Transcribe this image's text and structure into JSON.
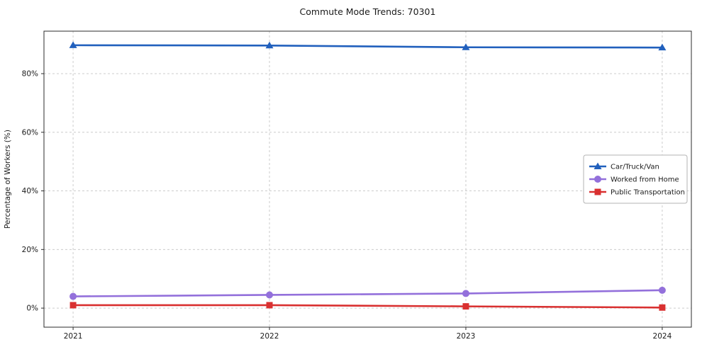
{
  "chart_data": {
    "type": "line",
    "title": "Commute Mode Trends: 70301",
    "xlabel": "",
    "ylabel": "Percentage of Workers (%)",
    "categories": [
      "2021",
      "2022",
      "2023",
      "2024"
    ],
    "series": [
      {
        "name": "Car/Truck/Van",
        "values": [
          89.7,
          89.6,
          89.0,
          88.9
        ],
        "color": "#2160bd",
        "marker": "triangle"
      },
      {
        "name": "Worked from Home",
        "values": [
          4.0,
          4.5,
          5.0,
          6.1
        ],
        "color": "#9370db",
        "marker": "circle"
      },
      {
        "name": "Public Transportation",
        "values": [
          1.0,
          1.0,
          0.6,
          0.2
        ],
        "color": "#d93030",
        "marker": "square"
      }
    ],
    "ylim": [
      -6.5,
      94.5
    ],
    "yticks": [
      0,
      20,
      40,
      60,
      80
    ],
    "ytick_labels": [
      "0%",
      "20%",
      "40%",
      "60%",
      "80%"
    ],
    "grid": true,
    "grid_style": "dashed",
    "grid_color": "#cccccc",
    "axis_color": "#2b2b2b",
    "text_color": "#1a1a1a",
    "legend_position": "center-right",
    "legend_border_color": "#b3b3b3",
    "background_color": "#ffffff"
  }
}
